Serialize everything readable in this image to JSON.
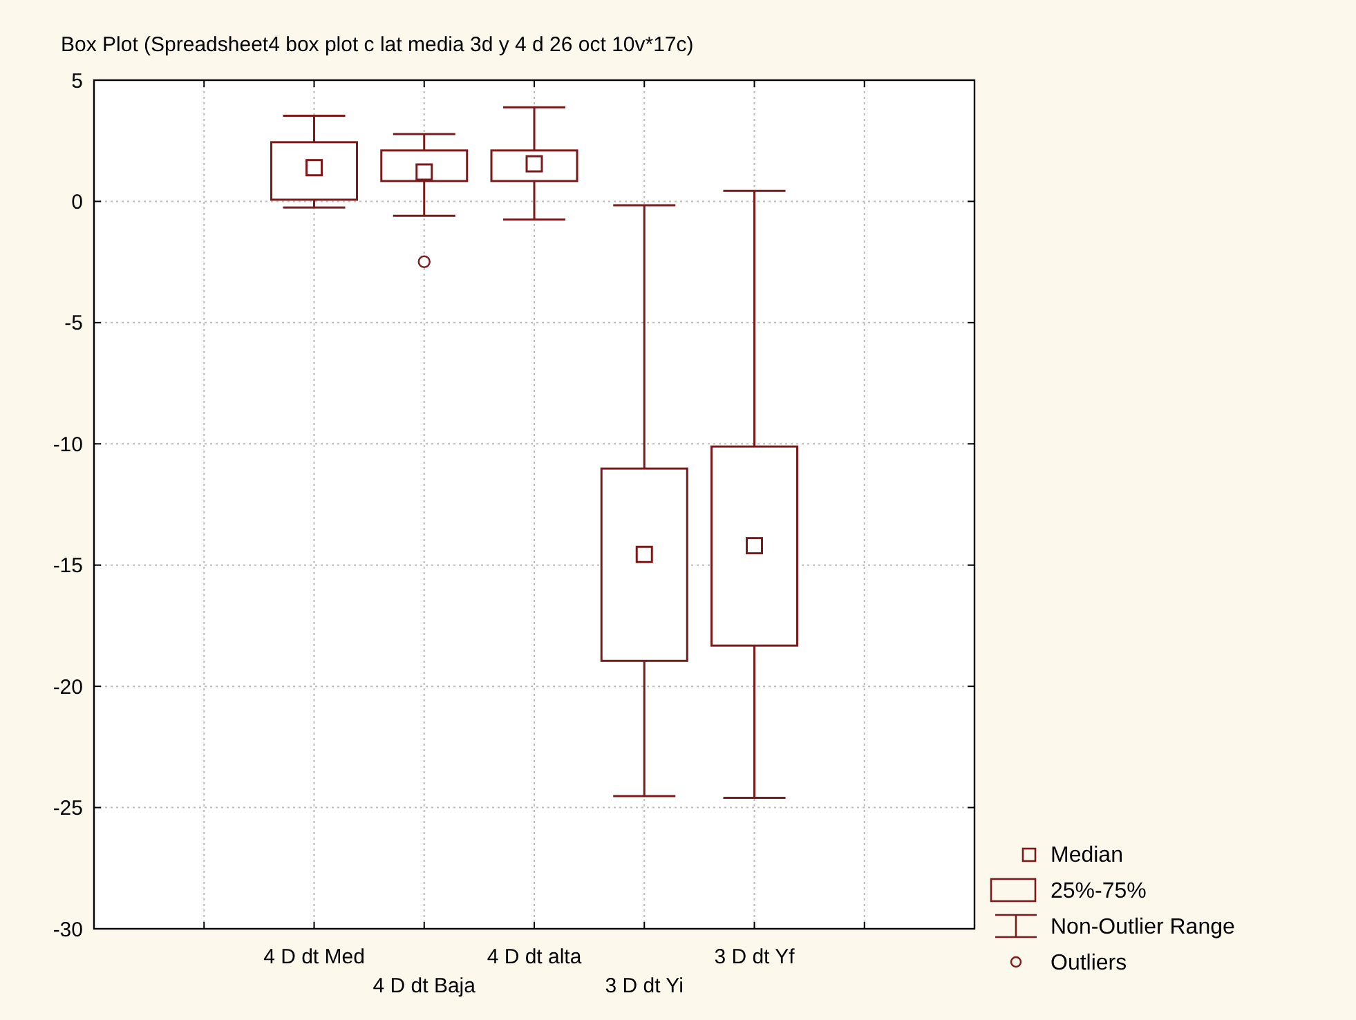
{
  "chart_data": {
    "type": "box",
    "title": "Box Plot (Spreadsheet4 box plot c lat media 3d y 4 d 26 oct 10v*17c)",
    "categories": [
      null,
      "4 D dt Med",
      "4 D dt Baja",
      "4 D dt alta",
      "3 D dt Yi",
      "3 D dt Yf",
      null
    ],
    "boxes": [
      null,
      {
        "low": -0.25,
        "q1": 0.07,
        "median": 1.39,
        "q3": 2.44,
        "high": 3.53
      },
      {
        "low": -0.59,
        "q1": 0.84,
        "median": 1.21,
        "q3": 2.1,
        "high": 2.78,
        "outliers": [
          -2.49
        ]
      },
      {
        "low": -0.75,
        "q1": 0.84,
        "median": 1.55,
        "q3": 2.1,
        "high": 3.88
      },
      {
        "low": -24.53,
        "q1": -18.95,
        "median": -14.56,
        "q3": -11.02,
        "high": -0.16
      },
      {
        "low": -24.6,
        "q1": -18.32,
        "median": -14.2,
        "q3": -10.11,
        "high": 0.43
      },
      null
    ],
    "color": "#7b1a1a",
    "ylim": [
      -30,
      5
    ],
    "yticks": [
      -30,
      -25,
      -20,
      -15,
      -10,
      -5,
      0,
      5
    ],
    "grid": true,
    "annotations": [
      "Median",
      "25%-75%",
      "Non-Outlier Range",
      "Outliers"
    ]
  }
}
